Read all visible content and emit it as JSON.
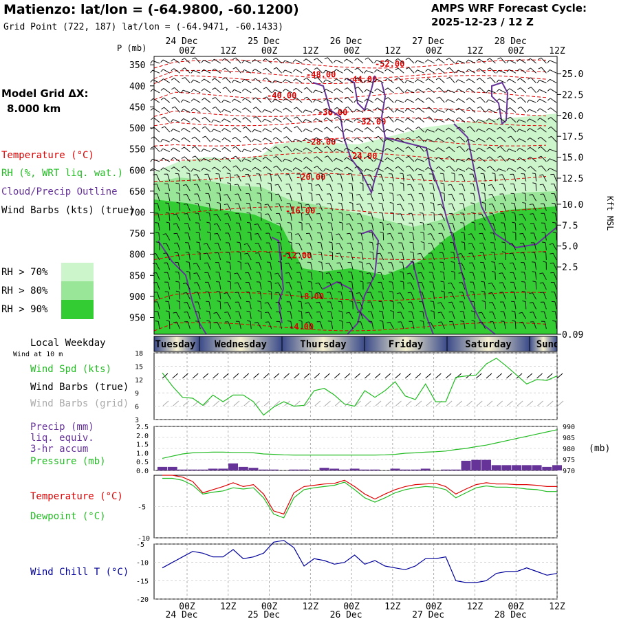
{
  "header": {
    "title": "Matienzo:  lat/lon = (-64.9800, -60.1200)",
    "subtitle": "Grid Point (722, 187) lat/lon = (-64.9471, -60.1433)",
    "cycle_line1": "AMPS WRF Forecast Cycle:",
    "cycle_line2": "2025-12-23 / 12  Z"
  },
  "left_panel": {
    "model_grid_label": "Model Grid ΔX:",
    "model_grid_value": "8.000 km",
    "legend_temperature": "Temperature (°C)",
    "legend_rh": "RH (%, WRT liq. wat.)",
    "legend_cloud": "Cloud/Precip Outline",
    "legend_wind": "Wind Barbs (kts) (true)",
    "rh_levels": [
      "RH > 70%",
      "RH > 80%",
      "RH > 90%"
    ],
    "local_weekday": "Local Weekday",
    "wind_at_10m": "Wind at 10 m"
  },
  "colors": {
    "rh70": "#ccf5cc",
    "rh80": "#99e699",
    "rh90": "#33cc33",
    "temperature": "#dd0000",
    "cloud": "#663399",
    "dewpoint": "#22bb22",
    "windchill": "#000099",
    "precip": "#663399",
    "pressure": "#22bb22",
    "weekday_dark": "#3a4a8a",
    "weekday_light": "#f5f0d0"
  },
  "time_axis": {
    "tick_labels": [
      "00Z",
      "12Z",
      "00Z",
      "12Z",
      "00Z",
      "12Z",
      "00Z",
      "12Z",
      "00Z",
      "12Z"
    ],
    "date_labels": [
      "24 Dec",
      "25 Dec",
      "26 Dec",
      "27 Dec",
      "28 Dec"
    ]
  },
  "weekdays": [
    "Tuesday",
    "Wednesday",
    "Thursday",
    "Friday",
    "Saturday",
    "Sunday"
  ],
  "chart_data": [
    {
      "type": "heatmap",
      "name": "cross-section",
      "ylabel": "P (mb)",
      "y2label": "Kft MSL",
      "pressure_ticks": [
        "350",
        "400",
        "450",
        "500",
        "550",
        "600",
        "650",
        "700",
        "750",
        "800",
        "850",
        "900",
        "950"
      ],
      "height_ticks": [
        "25.0",
        "22.5",
        "20.0",
        "17.5",
        "15.0",
        "12.5",
        "10.0",
        "7.5",
        "5.0",
        "2.5",
        "0.09"
      ],
      "isotherm_labels": [
        {
          "text": "-52.00",
          "p": 348
        },
        {
          "text": "-48.00",
          "p": 373
        },
        {
          "text": "-44.00",
          "p": 385
        },
        {
          "text": "-40.00",
          "p": 423
        },
        {
          "text": "-36.00",
          "p": 463
        },
        {
          "text": "-32.00",
          "p": 485
        },
        {
          "text": "-28.00",
          "p": 533
        },
        {
          "text": "-24.00",
          "p": 567
        },
        {
          "text": "-20.00",
          "p": 617
        },
        {
          "text": "-16.00",
          "p": 697
        },
        {
          "text": "-12.00",
          "p": 803
        },
        {
          "text": "-8.00",
          "p": 900
        },
        {
          "text": "-4.00",
          "p": 972
        }
      ]
    },
    {
      "type": "line",
      "name": "wind speed",
      "label": "Wind Spd (kts)",
      "label_barbs_true": "Wind Barbs (true)",
      "label_barbs_grid": "Wind Barbs (grid)",
      "ylim": [
        3,
        18
      ],
      "y_ticks": [
        "18",
        "15",
        "12",
        "9",
        "6",
        "3"
      ],
      "x_hours": [
        0,
        3,
        6,
        9,
        12,
        15,
        18,
        21,
        24,
        27,
        30,
        33,
        36,
        39,
        42,
        45,
        48,
        51,
        54,
        57,
        60,
        63,
        66,
        69,
        72,
        75,
        78,
        81,
        84,
        87,
        90,
        93,
        96,
        99,
        102,
        105,
        108,
        111,
        114,
        117
      ],
      "values": [
        13.5,
        10.5,
        8,
        7.8,
        6.2,
        8.5,
        7,
        8.5,
        8.5,
        7,
        4,
        5.8,
        7,
        6,
        6.2,
        9.5,
        10,
        8.5,
        6.5,
        6,
        9.5,
        8,
        9.5,
        11.5,
        8.3,
        7.5,
        11,
        7,
        7,
        12.5,
        12.8,
        13,
        15.5,
        16.8,
        15,
        13,
        11,
        12,
        11.8,
        12.8
      ]
    },
    {
      "type": "bar",
      "name": "precip and pressure",
      "label_precip": "Precip (mm)",
      "label_precip2": "liq. equiv.",
      "label_precip3": "3-hr accum",
      "label_pressure": "Pressure (mb)",
      "precip_ylim": [
        0,
        2.5
      ],
      "precip_ticks": [
        "2.5",
        "2.0",
        "1.5",
        "1.0",
        "0.5",
        "0.0"
      ],
      "pressure_ylim": [
        970,
        990
      ],
      "pressure_ticks": [
        "990",
        "985",
        "980",
        "975",
        "970"
      ],
      "pressure_unit": "(mb)",
      "x_hours": [
        0,
        3,
        6,
        9,
        12,
        15,
        18,
        21,
        24,
        27,
        30,
        33,
        36,
        39,
        42,
        45,
        48,
        51,
        54,
        57,
        60,
        63,
        66,
        69,
        72,
        75,
        78,
        81,
        84,
        87,
        90,
        93,
        96,
        99,
        102,
        105,
        108,
        111,
        114,
        117
      ],
      "precip": [
        0.2,
        0.2,
        0.05,
        0.05,
        0.05,
        0.1,
        0.1,
        0.4,
        0.2,
        0.15,
        0.05,
        0.05,
        0.0,
        0.05,
        0.05,
        0.0,
        0.15,
        0.1,
        0.05,
        0.1,
        0.05,
        0.05,
        0.0,
        0.1,
        0.05,
        0.05,
        0.1,
        0.0,
        0.05,
        0.05,
        0.55,
        0.6,
        0.6,
        0.3,
        0.3,
        0.3,
        0.3,
        0.3,
        0.2,
        0.3
      ],
      "pressure": [
        975.5,
        976.5,
        977.5,
        978.0,
        978.2,
        978.3,
        978.3,
        978.2,
        978.2,
        978.0,
        977.5,
        977.3,
        977.1,
        977.0,
        977.0,
        977.0,
        977.0,
        977.0,
        977.0,
        977.0,
        977.0,
        977.0,
        977.1,
        977.3,
        977.8,
        978.0,
        978.3,
        978.5,
        978.8,
        979.5,
        980.0,
        980.8,
        981.5,
        982.5,
        983.5,
        984.5,
        985.5,
        986.5,
        987.5,
        988.5
      ]
    },
    {
      "type": "line",
      "name": "temperature and dewpoint",
      "ylim": [
        -10,
        0
      ],
      "y_ticks": [
        "-5",
        "-10"
      ],
      "series": [
        {
          "name": "Temperature (°C)",
          "values": [
            0,
            0,
            -0.3,
            -1.0,
            -2.8,
            -2.3,
            -1.8,
            -1.2,
            -1.8,
            -1.5,
            -3.0,
            -5.7,
            -6.2,
            -2.8,
            -1.8,
            -1.6,
            -1.4,
            -1.3,
            -0.8,
            -1.8,
            -3.0,
            -3.8,
            -3.0,
            -2.3,
            -1.8,
            -1.5,
            -1.4,
            -1.3,
            -1.8,
            -3.0,
            -2.2,
            -1.5,
            -1.2,
            -1.4,
            -1.4,
            -1.5,
            -1.5,
            -1.6,
            -1.8,
            -1.8
          ]
        },
        {
          "name": "Dewpoint (°C)",
          "values": [
            -0.5,
            -0.5,
            -0.8,
            -1.6,
            -3.0,
            -2.7,
            -2.5,
            -2.0,
            -2.2,
            -2.0,
            -3.6,
            -6.2,
            -6.8,
            -3.6,
            -2.3,
            -2.0,
            -1.8,
            -1.6,
            -1.1,
            -2.3,
            -3.6,
            -4.3,
            -3.6,
            -2.8,
            -2.3,
            -2.0,
            -1.8,
            -1.9,
            -2.3,
            -3.6,
            -2.8,
            -2.0,
            -1.7,
            -1.9,
            -1.9,
            -2.0,
            -2.2,
            -2.3,
            -2.6,
            -2.6
          ]
        }
      ]
    },
    {
      "type": "line",
      "name": "wind chill",
      "label": "Wind Chill T (°C)",
      "ylim": [
        -20,
        -5
      ],
      "y_ticks": [
        "-5",
        "-10",
        "-15",
        "-20"
      ],
      "values": [
        -11.5,
        -10,
        -8.5,
        -7,
        -7.5,
        -8.5,
        -8.5,
        -6.5,
        -9,
        -8.5,
        -7.5,
        -4.5,
        -4,
        -6,
        -11,
        -9,
        -9.5,
        -10.5,
        -10,
        -8,
        -10.5,
        -9.5,
        -11,
        -11.5,
        -12,
        -11,
        -9,
        -9,
        -8.5,
        -15,
        -15.5,
        -15.5,
        -15,
        -13,
        -12.5,
        -12.5,
        -11.5,
        -12.5,
        -13.5,
        -13
      ]
    }
  ]
}
